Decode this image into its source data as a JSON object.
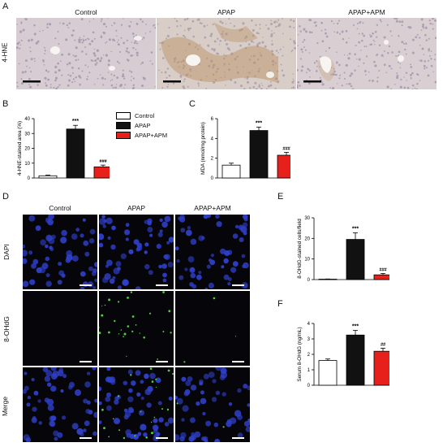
{
  "panels": {
    "A": "A",
    "B": "B",
    "C": "C",
    "D": "D",
    "E": "E",
    "F": "F"
  },
  "groups": [
    "Control",
    "APAP",
    "APAP+APM"
  ],
  "row_labels": {
    "hne": "4-HNE",
    "dapi": "DAPI",
    "ohdg": "8-OHdG",
    "merge": "Merge"
  },
  "legend": {
    "items": [
      {
        "label": "Control",
        "color": "#ffffff"
      },
      {
        "label": "APAP",
        "color": "#111111"
      },
      {
        "label": "APAP+APM",
        "color": "#e8201c"
      }
    ]
  },
  "colors": {
    "control": "#ffffff",
    "apap": "#111111",
    "apm": "#e8201c"
  },
  "chart_data": [
    {
      "id": "B",
      "type": "bar",
      "categories": [
        "Control",
        "APAP",
        "APAP+APM"
      ],
      "values": [
        1.5,
        33,
        7.5
      ],
      "errors": [
        0.5,
        2.5,
        1.2
      ],
      "sig": [
        "",
        "***",
        "###"
      ],
      "ylabel": "4-HNE-stained area (%)",
      "ylim": [
        0,
        40
      ],
      "yticks": [
        0,
        10,
        20,
        30,
        40
      ]
    },
    {
      "id": "C",
      "type": "bar",
      "categories": [
        "Control",
        "APAP",
        "APAP+APM"
      ],
      "values": [
        1.3,
        4.8,
        2.3
      ],
      "errors": [
        0.2,
        0.35,
        0.3
      ],
      "sig": [
        "",
        "***",
        "###"
      ],
      "ylabel": "MDA  (nmol/mg protein)",
      "ylim": [
        0,
        6
      ],
      "yticks": [
        0,
        2,
        4,
        6
      ]
    },
    {
      "id": "E",
      "type": "bar",
      "categories": [
        "Control",
        "APAP",
        "APAP+APM"
      ],
      "values": [
        0.2,
        19.5,
        2.3
      ],
      "errors": [
        0.1,
        3.2,
        0.7
      ],
      "sig": [
        "",
        "***",
        "###"
      ],
      "ylabel": "8-OHdG-stained cells/field",
      "ylim": [
        0,
        30
      ],
      "yticks": [
        0,
        10,
        20,
        30
      ]
    },
    {
      "id": "F",
      "type": "bar",
      "categories": [
        "Control",
        "APAP",
        "APAP+APM"
      ],
      "values": [
        1.6,
        3.25,
        2.2
      ],
      "errors": [
        0.1,
        0.3,
        0.2
      ],
      "sig": [
        "",
        "***",
        "##"
      ],
      "ylabel": "Serum 8-OHdG  (ng/mL)",
      "ylim": [
        0,
        4
      ],
      "yticks": [
        0,
        1,
        2,
        3,
        4
      ]
    }
  ]
}
